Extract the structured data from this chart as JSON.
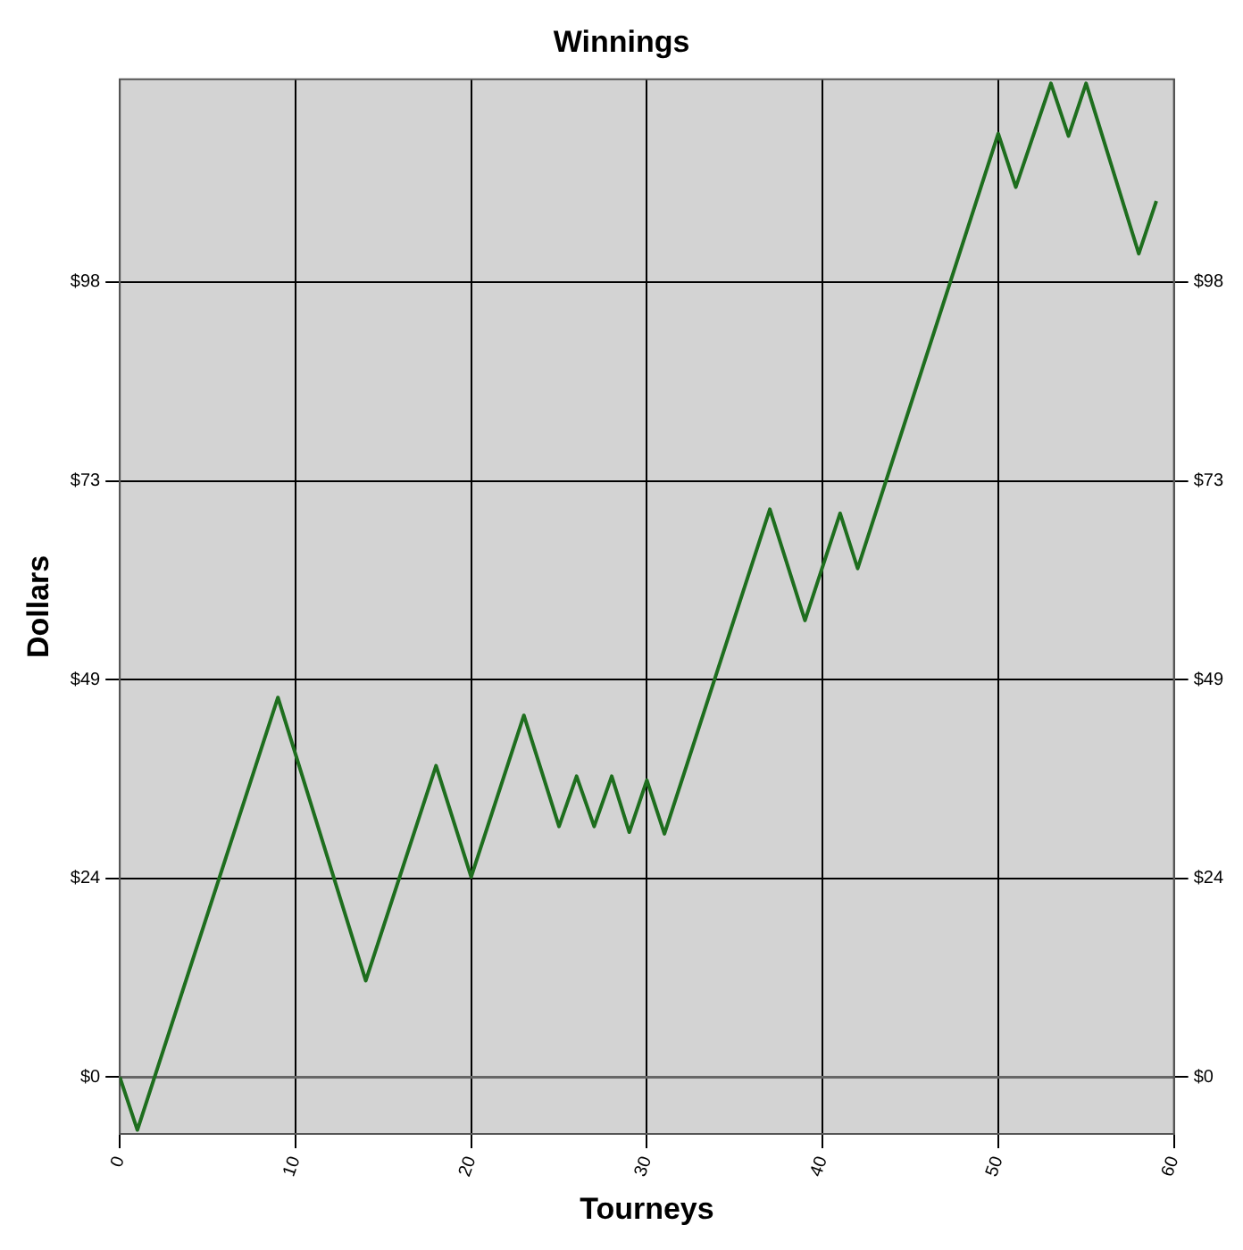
{
  "chart_data": {
    "type": "line",
    "title": "Winnings",
    "xlabel": "Tourneys",
    "ylabel": "Dollars",
    "x": [
      0,
      1,
      9,
      14,
      18,
      20,
      23,
      25,
      26,
      27,
      28,
      29,
      30,
      31,
      37,
      39,
      41,
      42,
      50,
      51,
      53,
      54,
      55,
      58,
      59
    ],
    "series": [
      {
        "color": "#1e6e1e",
        "values": [
          0,
          -6.5,
          46.8,
          11.9,
          38.4,
          24.7,
          44.6,
          30.9,
          37.1,
          30.9,
          37.1,
          30.2,
          36.6,
          30,
          70,
          56.3,
          69.5,
          62.7,
          116.3,
          109.7,
          122.5,
          116,
          122.5,
          101.5,
          108
        ]
      }
    ],
    "xlim": [
      0,
      60
    ],
    "xticks": [
      0,
      10,
      20,
      30,
      40,
      50,
      60
    ],
    "ylim": [
      -7,
      123
    ],
    "yticks": [
      {
        "value": 0,
        "label": "$0"
      },
      {
        "value": 24.5,
        "label": "$24"
      },
      {
        "value": 49,
        "label": "$49"
      },
      {
        "value": 73.5,
        "label": "$73"
      },
      {
        "value": 98,
        "label": "$98"
      }
    ],
    "y2lim": [
      -7,
      123
    ],
    "y2ticks": [
      {
        "value": 0,
        "label": "$0"
      },
      {
        "value": 24.5,
        "label": "$24"
      },
      {
        "value": 49,
        "label": "$49"
      },
      {
        "value": 73.5,
        "label": "$73"
      },
      {
        "value": 98,
        "label": "$98"
      }
    ],
    "ref_lines": [
      {
        "axis": "y",
        "value": 0,
        "color": "#666666"
      }
    ],
    "grid": true,
    "legend": false,
    "marker": "none",
    "line_style": "solid"
  }
}
